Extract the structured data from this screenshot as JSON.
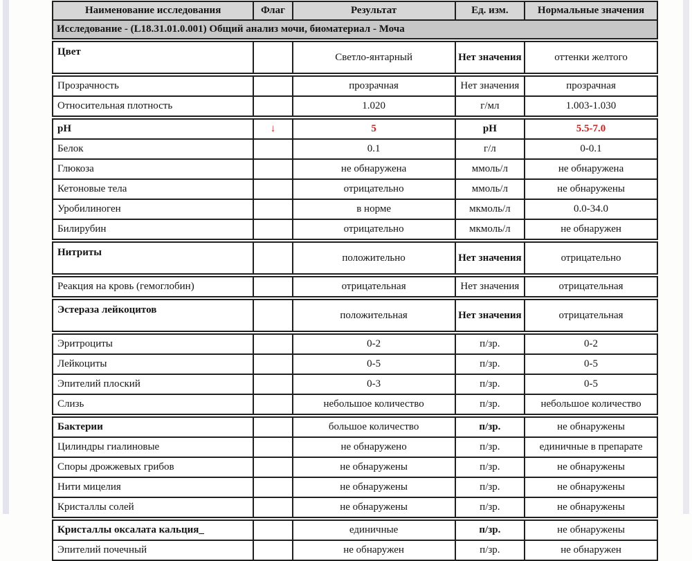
{
  "colors": {
    "header_bg": "#d6d6d6",
    "section_bg": "#c7c7c7",
    "border": "#1f1f1f",
    "abnormal_red": "#cc2222",
    "page_edge_strip": "#e4e4ec"
  },
  "table": {
    "headers": [
      "Наименование исследования",
      "Флаг",
      "Результат",
      "Ед. изм.",
      "Нормальные значения"
    ],
    "section_title": "Исследование - (L18.31.01.0.001) Общий анализ мочи, биоматериал - Моча",
    "flag_icon": "down-arrow-icon",
    "rows": [
      {
        "name": "Цвет",
        "flag": "",
        "result": "Светло-янтарный",
        "units": "Нет значения",
        "normal": "оттенки желтого",
        "em": true,
        "tall": true,
        "red": false
      },
      {
        "name": "Прозрачность",
        "flag": "",
        "result": "прозрачная",
        "units": "Нет значения",
        "normal": "прозрачная",
        "em": false,
        "tall": false,
        "red": false
      },
      {
        "name": "Относительная плотность",
        "flag": "",
        "result": "1.020",
        "units": "г/мл",
        "normal": "1.003-1.030",
        "em": false,
        "tall": false,
        "red": false
      },
      {
        "name": "pH",
        "flag": "↓",
        "result": "5",
        "units": "pH",
        "normal": "5.5-7.0",
        "em": true,
        "tall": false,
        "red": true
      },
      {
        "name": "Белок",
        "flag": "",
        "result": "0.1",
        "units": "г/л",
        "normal": "0-0.1",
        "em": false,
        "tall": false,
        "red": false
      },
      {
        "name": "Глюкоза",
        "flag": "",
        "result": "не обнаружена",
        "units": "ммоль/л",
        "normal": "не обнаружена",
        "em": false,
        "tall": false,
        "red": false
      },
      {
        "name": "Кетоновые тела",
        "flag": "",
        "result": "отрицательно",
        "units": "ммоль/л",
        "normal": "не обнаружены",
        "em": false,
        "tall": false,
        "red": false
      },
      {
        "name": "Уробилиноген",
        "flag": "",
        "result": "в норме",
        "units": "мкмоль/л",
        "normal": "0.0-34.0",
        "em": false,
        "tall": false,
        "red": false
      },
      {
        "name": "Билирубин",
        "flag": "",
        "result": "отрицательно",
        "units": "мкмоль/л",
        "normal": "не обнаружен",
        "em": false,
        "tall": false,
        "red": false
      },
      {
        "name": "Нитриты",
        "flag": "",
        "result": "положительно",
        "units": "Нет значения",
        "normal": "отрицательно",
        "em": true,
        "tall": true,
        "red": false
      },
      {
        "name": "Реакция на кровь (гемоглобин)",
        "flag": "",
        "result": "отрицательная",
        "units": "Нет значения",
        "normal": "отрицательная",
        "em": false,
        "tall": false,
        "red": false
      },
      {
        "name": "Эстераза лейкоцитов",
        "flag": "",
        "result": "положительная",
        "units": "Нет значения",
        "normal": "отрицательная",
        "em": true,
        "tall": true,
        "red": false
      },
      {
        "name": "Эритроциты",
        "flag": "",
        "result": "0-2",
        "units": "п/зр.",
        "normal": "0-2",
        "em": false,
        "tall": false,
        "red": false
      },
      {
        "name": "Лейкоциты",
        "flag": "",
        "result": "0-5",
        "units": "п/зр.",
        "normal": "0-5",
        "em": false,
        "tall": false,
        "red": false
      },
      {
        "name": "Эпителий плоский",
        "flag": "",
        "result": "0-3",
        "units": "п/зр.",
        "normal": "0-5",
        "em": false,
        "tall": false,
        "red": false
      },
      {
        "name": "Слизь",
        "flag": "",
        "result": "небольшое количество",
        "units": "п/зр.",
        "normal": "небольшое количество",
        "em": false,
        "tall": false,
        "red": false
      },
      {
        "name": "Бактерии",
        "flag": "",
        "result": "большое количество",
        "units": "п/зр.",
        "normal": "не обнаружены",
        "em": true,
        "tall": false,
        "red": false
      },
      {
        "name": "Цилиндры гиалиновые",
        "flag": "",
        "result": "не обнаружено",
        "units": "п/зр.",
        "normal": "единичные в препарате",
        "em": false,
        "tall": false,
        "red": false
      },
      {
        "name": "Споры дрожжевых грибов",
        "flag": "",
        "result": "не обнаружены",
        "units": "п/зр.",
        "normal": "не обнаружены",
        "em": false,
        "tall": false,
        "red": false
      },
      {
        "name": "Нити мицелия",
        "flag": "",
        "result": "не обнаружены",
        "units": "п/зр.",
        "normal": "не обнаружены",
        "em": false,
        "tall": false,
        "red": false
      },
      {
        "name": "Кристаллы солей",
        "flag": "",
        "result": "не обнаружены",
        "units": "п/зр.",
        "normal": "не обнаружены",
        "em": false,
        "tall": false,
        "red": false
      },
      {
        "name": "Кристаллы оксалата кальция_",
        "flag": "",
        "result": "единичные",
        "units": "п/зр.",
        "normal": "не обнаружены",
        "em": true,
        "tall": false,
        "red": false
      },
      {
        "name": "Эпителий почечный",
        "flag": "",
        "result": "не обнаружен",
        "units": "п/зр.",
        "normal": "не обнаружен",
        "em": false,
        "tall": false,
        "red": false
      }
    ]
  }
}
